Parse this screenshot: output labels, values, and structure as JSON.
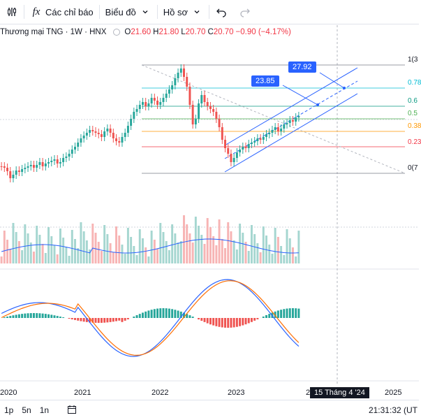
{
  "toolbar": {
    "indicator_label": "Các chỉ báo",
    "chart_type_label": "Biểu đồ",
    "profile_label": "Hồ sơ"
  },
  "legend": {
    "symbol": "Thương mại TNG · 1W · HNX",
    "o_key": "O",
    "o_val": "21.60",
    "h_key": "H",
    "h_val": "21.80",
    "l_key": "L",
    "l_val": "20.70",
    "c_key": "C",
    "c_val": "20.70",
    "change": "−0.90 (−4.17%)"
  },
  "callouts": {
    "a": "23.85",
    "b": "27.92"
  },
  "fib_levels": [
    {
      "label": "1(3",
      "color": "#787b86"
    },
    {
      "label": "0.78",
      "color": "#00bcd4"
    },
    {
      "label": "0.6",
      "color": "#089981"
    },
    {
      "label": "0.5",
      "color": "#4caf50"
    },
    {
      "label": "0.38",
      "color": "#ff9800"
    },
    {
      "label": "0.23",
      "color": "#f23645"
    },
    {
      "label": "0(7",
      "color": "#787b86"
    }
  ],
  "x_axis": [
    "2020",
    "2021",
    "2022",
    "2023",
    "2",
    "2025"
  ],
  "date_tag": "15 Tháng 4 '24",
  "bottombar": {
    "range_1": "1p",
    "range_2": "5n",
    "range_3": "1n",
    "clock": "21:31:32 (UT"
  },
  "colors": {
    "up": "#26a69a",
    "down": "#ef5350",
    "accent": "#2962ff"
  }
}
